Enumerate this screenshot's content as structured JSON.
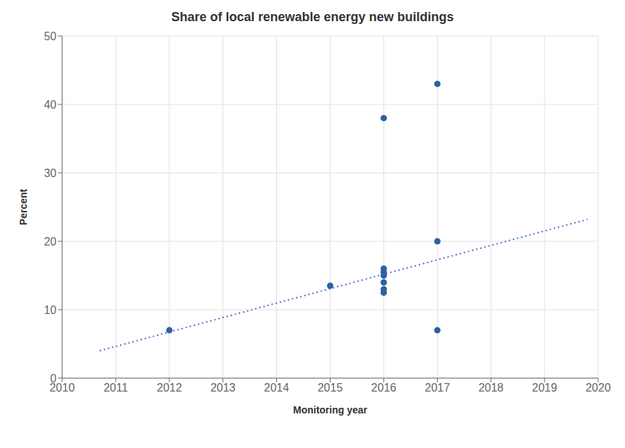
{
  "chart_data": {
    "type": "scatter",
    "title": "Share of local renewable energy new buildings",
    "xlabel": "Monitoring year",
    "ylabel": "Percent",
    "xlim": [
      2010,
      2020
    ],
    "ylim": [
      0,
      50
    ],
    "xticks": [
      2010,
      2011,
      2012,
      2013,
      2014,
      2015,
      2016,
      2017,
      2018,
      2019,
      2020
    ],
    "yticks": [
      0,
      10,
      20,
      30,
      40,
      50
    ],
    "grid": true,
    "series": [
      {
        "type": "scatter",
        "marker": "circle",
        "color": "#2e5fa3",
        "x": [
          2012,
          2015,
          2016,
          2016,
          2016,
          2016,
          2016,
          2016,
          2016,
          2017,
          2017,
          2017
        ],
        "values": [
          7,
          13.5,
          38,
          16,
          15.5,
          15,
          14,
          13,
          12.5,
          43,
          20,
          7
        ]
      },
      {
        "type": "line",
        "line_style": "dotted",
        "color": "#4472c4",
        "x": [
          2010.7,
          2019.8
        ],
        "values": [
          4.0,
          23.2
        ]
      }
    ]
  }
}
